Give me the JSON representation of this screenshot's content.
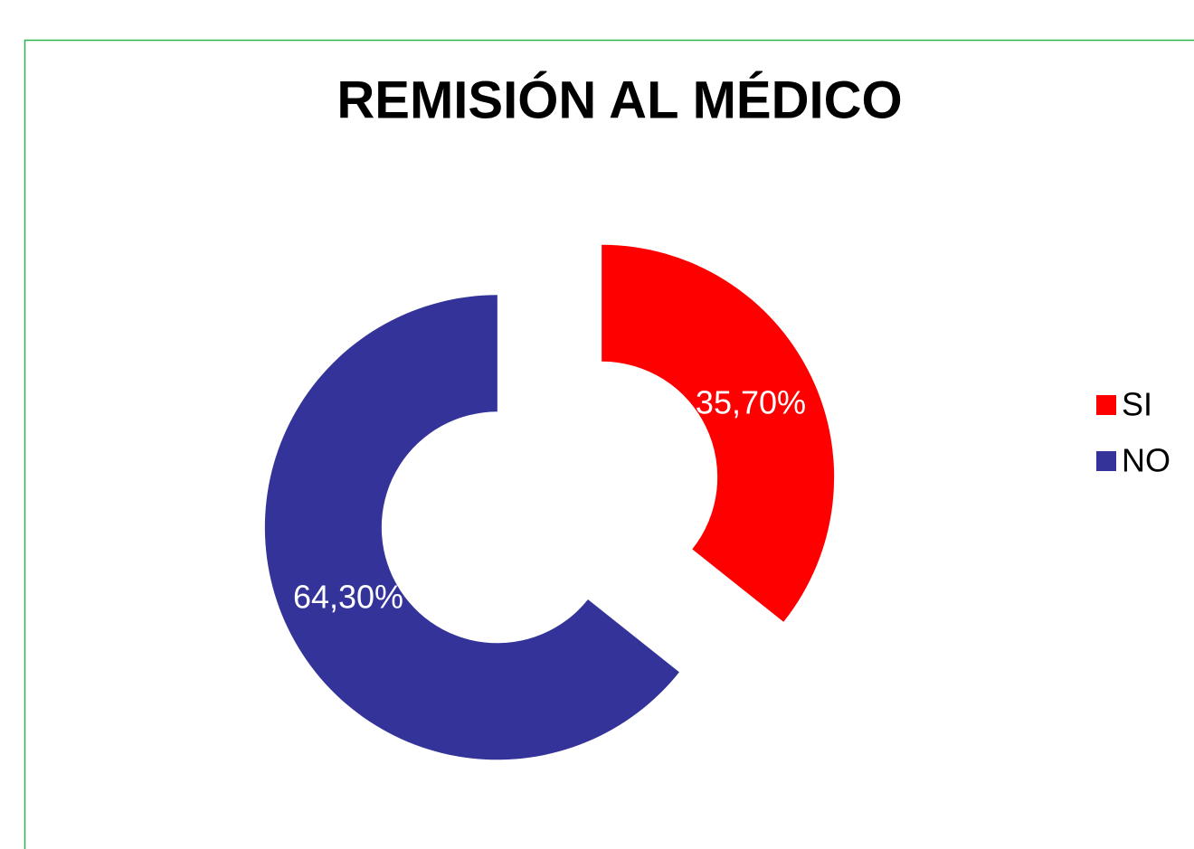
{
  "chart_data": {
    "type": "donut",
    "title": "REMISIÓN AL MÉDICO",
    "categories": [
      "SI",
      "NO"
    ],
    "values": [
      35.7,
      64.3
    ],
    "value_labels": [
      "35,70%",
      "64,30%"
    ],
    "colors": [
      "#ff0000",
      "#333399"
    ]
  }
}
